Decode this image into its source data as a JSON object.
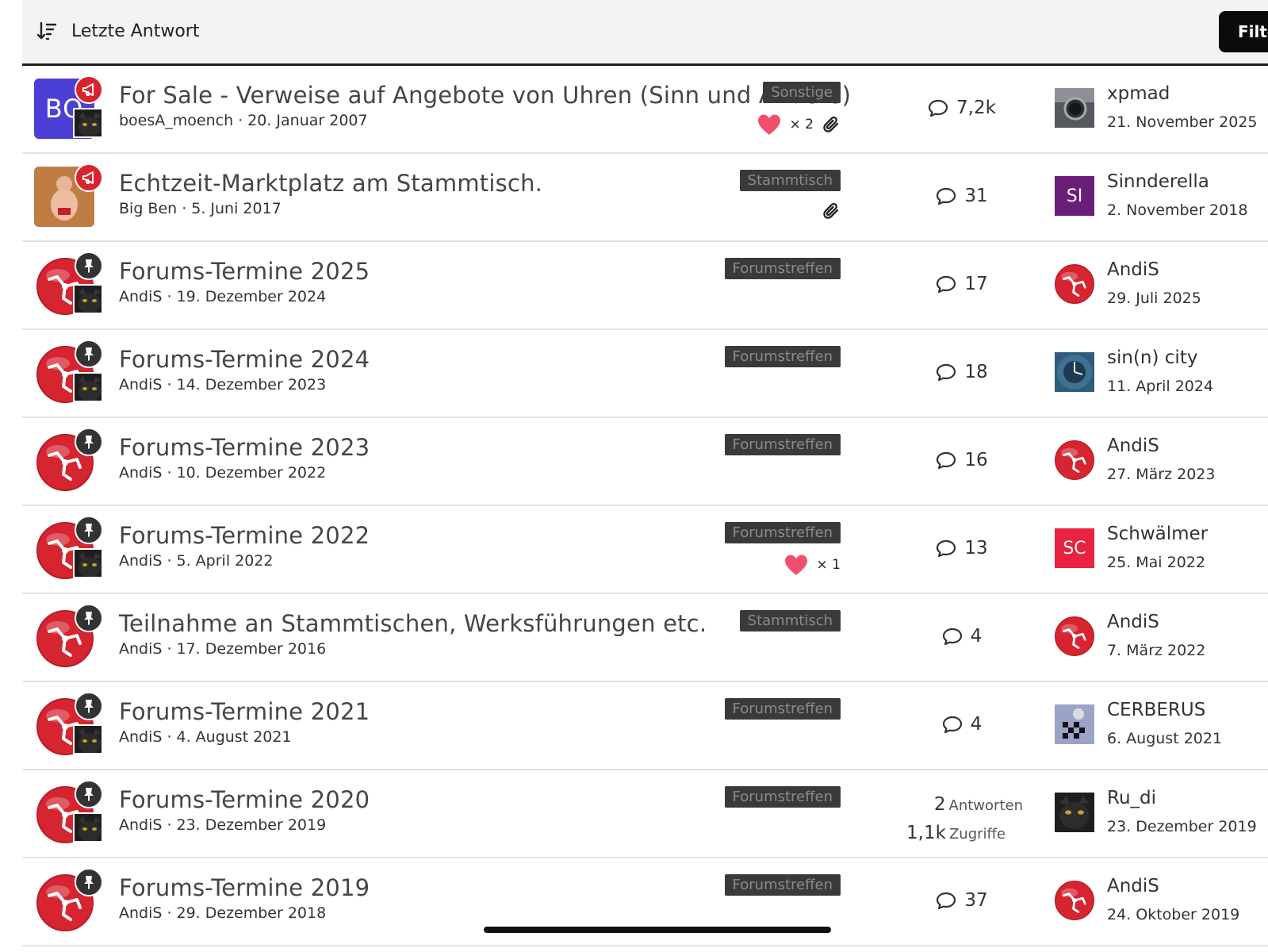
{
  "header": {
    "sort_label": "Letzte Antwort",
    "filter_label": "Filter"
  },
  "threads": [
    {
      "title": "For Sale - Verweise auf Angebote von Uhren (Sinn und Andere)",
      "author": "boesA_moench",
      "date": "20. Januar 2007",
      "tag": "Sonstige",
      "likes": "× 2",
      "attachment": true,
      "replies": "7,2k",
      "last_user": "xpmad",
      "last_date": "21. November 2025",
      "avatar": "BO",
      "status": "announcement"
    },
    {
      "title": "Echtzeit-Marktplatz am Stammtisch.",
      "author": "Big Ben",
      "date": "5. Juni 2017",
      "tag": "Stammtisch",
      "attachment": true,
      "replies": "31",
      "last_user": "Sinnderella",
      "last_date": "2. November 2018",
      "last_avatar": "SI",
      "status": "announcement"
    },
    {
      "title": "Forums-Termine 2025",
      "author": "AndiS",
      "date": "19. Dezember 2024",
      "tag": "Forumstreffen",
      "replies": "17",
      "last_user": "AndiS",
      "last_date": "29. Juli 2025",
      "status": "pinned"
    },
    {
      "title": "Forums-Termine 2024",
      "author": "AndiS",
      "date": "14. Dezember 2023",
      "tag": "Forumstreffen",
      "replies": "18",
      "last_user": "sin(n) city",
      "last_date": "11. April 2024",
      "status": "pinned"
    },
    {
      "title": "Forums-Termine 2023",
      "author": "AndiS",
      "date": "10. Dezember 2022",
      "tag": "Forumstreffen",
      "replies": "16",
      "last_user": "AndiS",
      "last_date": "27. März 2023",
      "status": "pinned"
    },
    {
      "title": "Forums-Termine 2022",
      "author": "AndiS",
      "date": "5. April 2022",
      "tag": "Forumstreffen",
      "likes": "× 1",
      "replies": "13",
      "last_user": "Schwälmer",
      "last_date": "25. Mai 2022",
      "last_avatar": "SC",
      "status": "pinned"
    },
    {
      "title": "Teilnahme an Stammtischen, Werksführungen etc.",
      "author": "AndiS",
      "date": "17. Dezember 2016",
      "tag": "Stammtisch",
      "replies": "4",
      "last_user": "AndiS",
      "last_date": "7. März 2022",
      "status": "pinned"
    },
    {
      "title": "Forums-Termine 2021",
      "author": "AndiS",
      "date": "4. August 2021",
      "tag": "Forumstreffen",
      "replies": "4",
      "last_user": "CERBERUS",
      "last_date": "6. August 2021",
      "status": "pinned"
    },
    {
      "title": "Forums-Termine 2020",
      "author": "AndiS",
      "date": "23. Dezember 2019",
      "tag": "Forumstreffen",
      "replies_num": "2",
      "replies_label": "Antworten",
      "views_num": "1,1k",
      "views_label": "Zugriffe",
      "last_user": "Ru_di",
      "last_date": "23. Dezember 2019",
      "status": "pinned"
    },
    {
      "title": "Forums-Termine 2019",
      "author": "AndiS",
      "date": "29. Dezember 2018",
      "tag": "Forumstreffen",
      "replies": "37",
      "last_user": "AndiS",
      "last_date": "24. Oktober 2019",
      "status": "pinned"
    }
  ],
  "colors": {
    "announcement": "#d9232d",
    "pinned": "#333333",
    "tag_bg": "#3a3a3a",
    "heart": "#f0506e",
    "bo_avatar": "#4b3fd6",
    "si_avatar": "#6b1d7a",
    "sc_avatar": "#e8223f",
    "ioms_red": "#d62430"
  }
}
